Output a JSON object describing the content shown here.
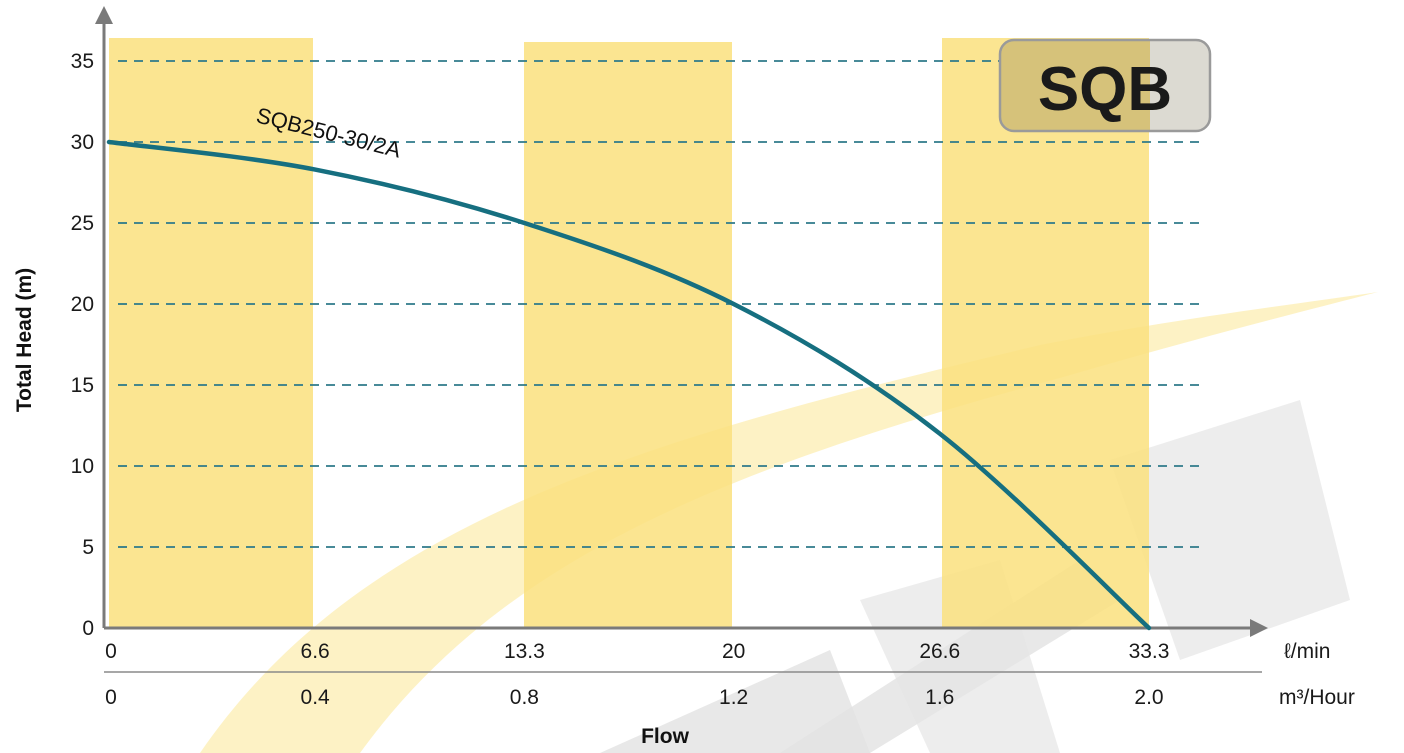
{
  "chart_data": {
    "type": "line",
    "title": "",
    "badge": "SQB",
    "xlabel": "Flow",
    "ylabel": "Total Head (m)",
    "ylim": [
      0,
      35
    ],
    "y_ticks": [
      0,
      5,
      10,
      15,
      20,
      25,
      30,
      35
    ],
    "x_ticks_lmin": [
      "0",
      "6.6",
      "13.3",
      "20",
      "26.6",
      "33.3"
    ],
    "x_ticks_m3h": [
      "0",
      "0.4",
      "0.8",
      "1.2",
      "1.6",
      "2.0"
    ],
    "x_unit_lmin": "ℓ/min",
    "x_unit_m3h": "m³/Hour",
    "grid": "horizontal dashed",
    "series": [
      {
        "name": "SQB250-30/2A",
        "x_lmin": [
          0,
          6.6,
          13.3,
          20,
          26.6,
          33.3
        ],
        "values": [
          30,
          28.3,
          25,
          20,
          12,
          0
        ]
      }
    ],
    "colors": {
      "band": "#fae17e",
      "curve": "#166f80",
      "grid": "#2e7a8a",
      "axis": "#7a7a7a",
      "watermark_yellow": "#fbe27f",
      "watermark_gray": "#dcdcdc",
      "badge_fill": "#d6c27a",
      "badge_right": "#dcdad2",
      "badge_border": "#9a9a9a"
    }
  }
}
